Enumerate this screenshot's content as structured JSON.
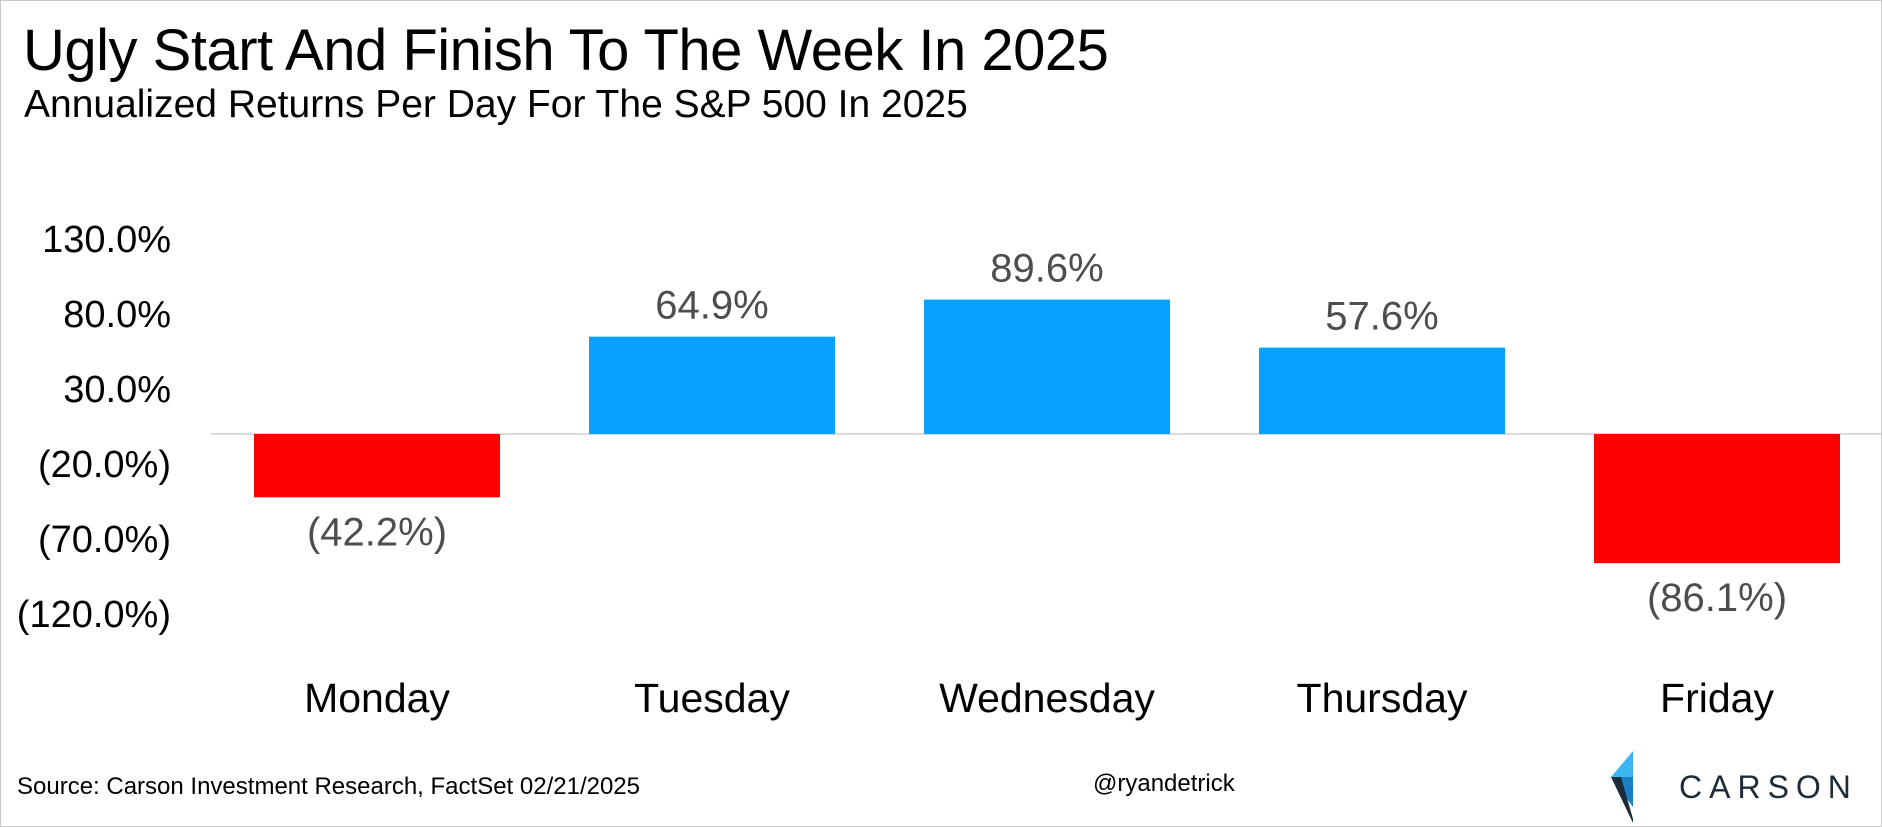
{
  "chart_data": {
    "type": "bar",
    "title": "Ugly Start And Finish To The Week In 2025",
    "subtitle": "Annualized Returns Per Day For The S&P 500 In 2025",
    "categories": [
      "Monday",
      "Tuesday",
      "Wednesday",
      "Thursday",
      "Friday"
    ],
    "values": [
      -42.2,
      64.9,
      89.6,
      57.6,
      -86.1
    ],
    "data_labels": [
      "(42.2%)",
      "64.9%",
      "89.6%",
      "57.6%",
      "(86.1%)"
    ],
    "y_ticks": [
      130,
      80,
      30,
      -20,
      -70,
      -120
    ],
    "y_tick_labels": [
      "130.0%",
      "80.0%",
      "30.0%",
      "(20.0%)",
      "(70.0%)",
      "(120.0%)"
    ],
    "ylim": [
      -120,
      130
    ],
    "xlabel": "",
    "ylabel": "",
    "grid": false,
    "legend": "none",
    "colors": {
      "positive": "#0aa0ff",
      "negative": "#ff0000",
      "zero_line": "#d9d9d9",
      "data_label": "#4d4d4d"
    }
  },
  "footer": {
    "source": "Source: Carson Investment Research, FactSet 02/21/2025",
    "handle": "@ryandetrick"
  },
  "brand": {
    "name": "CARSON",
    "logo_icon": "carson-chevron-logo",
    "colors": {
      "light": "#3bb4f2",
      "mid": "#1b7fc4",
      "dark": "#1d2b3a"
    }
  }
}
